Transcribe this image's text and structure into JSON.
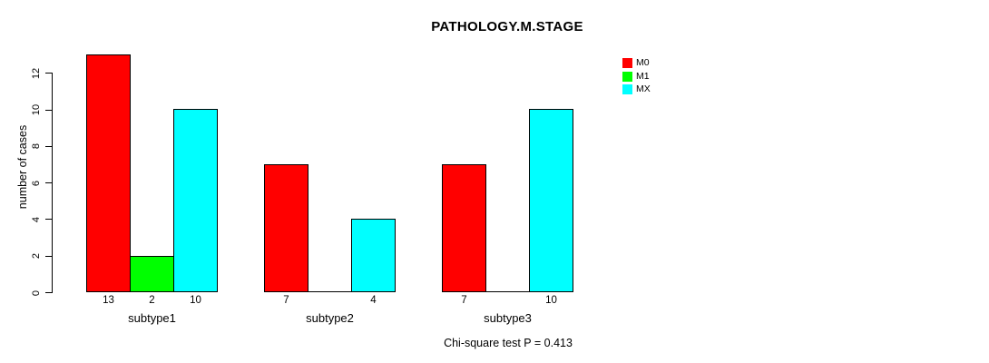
{
  "chart_data": {
    "type": "bar",
    "title": "PATHOLOGY.M.STAGE",
    "xlabel": "",
    "ylabel": "number of cases",
    "categories": [
      "subtype1",
      "subtype2",
      "subtype3"
    ],
    "series": [
      {
        "name": "M0",
        "color": "#FF0000",
        "values": [
          13,
          7,
          7
        ]
      },
      {
        "name": "M1",
        "color": "#00FF00",
        "values": [
          2,
          0,
          0
        ]
      },
      {
        "name": "MX",
        "color": "#00FFFF",
        "values": [
          10,
          4,
          10
        ]
      }
    ],
    "yticks": [
      0,
      2,
      4,
      6,
      8,
      10,
      12
    ],
    "ylim": [
      0,
      13
    ],
    "grid": false,
    "legend_position": "top-right",
    "bar_value_labels": "shown under each bar, omitted for zero-height bars",
    "footer": "Chi-square test P = 0.413"
  }
}
